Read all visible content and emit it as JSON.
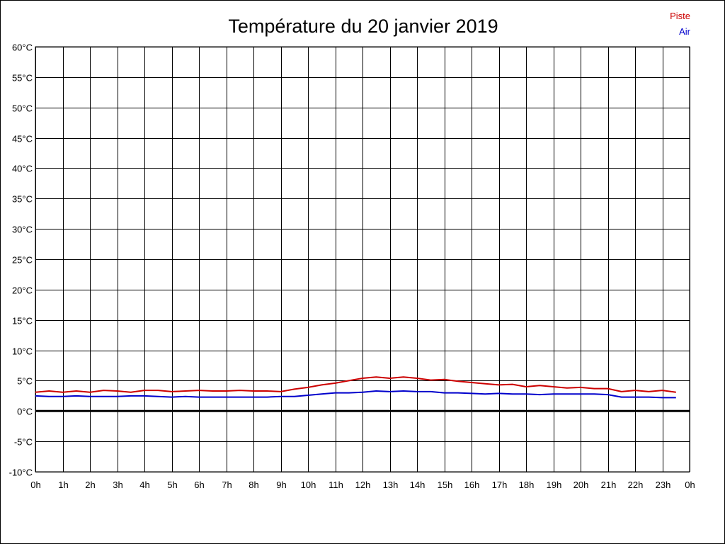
{
  "chart_data": {
    "type": "line",
    "title": "Température du 20 janvier 2019",
    "xlabel": "",
    "ylabel": "",
    "x_ticks": [
      "0h",
      "1h",
      "2h",
      "3h",
      "4h",
      "5h",
      "6h",
      "7h",
      "8h",
      "9h",
      "10h",
      "11h",
      "12h",
      "13h",
      "14h",
      "15h",
      "16h",
      "17h",
      "18h",
      "19h",
      "20h",
      "21h",
      "22h",
      "23h",
      "0h"
    ],
    "y_ticks": [
      {
        "value": 60,
        "label": "60°C"
      },
      {
        "value": 55,
        "label": "55°C"
      },
      {
        "value": 50,
        "label": "50°C"
      },
      {
        "value": 45,
        "label": "45°C"
      },
      {
        "value": 40,
        "label": "40°C"
      },
      {
        "value": 35,
        "label": "35°C"
      },
      {
        "value": 30,
        "label": "30°C"
      },
      {
        "value": 25,
        "label": "25°C"
      },
      {
        "value": 20,
        "label": "20°C"
      },
      {
        "value": 15,
        "label": "15°C"
      },
      {
        "value": 10,
        "label": "10°C"
      },
      {
        "value": 5,
        "label": "5°C"
      },
      {
        "value": 0,
        "label": "0°C"
      },
      {
        "value": -5,
        "label": "-5°C"
      },
      {
        "value": -10,
        "label": "-10°C"
      }
    ],
    "xlim": [
      0,
      24
    ],
    "ylim": [
      -10,
      60
    ],
    "grid": true,
    "legend_position": "top-right",
    "series": [
      {
        "name": "Piste",
        "color": "#cc0000",
        "x": [
          0,
          0.5,
          1,
          1.5,
          2,
          2.5,
          3,
          3.5,
          4,
          4.5,
          5,
          5.5,
          6,
          6.5,
          7,
          7.5,
          8,
          8.5,
          9,
          9.5,
          10,
          10.5,
          11,
          11.5,
          12,
          12.5,
          13,
          13.5,
          14,
          14.5,
          15,
          15.5,
          16,
          16.5,
          17,
          17.5,
          18,
          18.5,
          19,
          19.5,
          20,
          20.5,
          21,
          21.5,
          22,
          22.5,
          23,
          23.5
        ],
        "y": [
          3.1,
          3.3,
          3.1,
          3.3,
          3.1,
          3.4,
          3.3,
          3.1,
          3.4,
          3.4,
          3.2,
          3.3,
          3.4,
          3.3,
          3.3,
          3.4,
          3.3,
          3.3,
          3.2,
          3.6,
          3.9,
          4.3,
          4.6,
          5.0,
          5.4,
          5.6,
          5.4,
          5.6,
          5.4,
          5.1,
          5.2,
          4.9,
          4.7,
          4.5,
          4.3,
          4.4,
          4.0,
          4.2,
          4.0,
          3.8,
          3.9,
          3.7,
          3.7,
          3.2,
          3.4,
          3.2,
          3.4,
          3.1
        ]
      },
      {
        "name": "Air",
        "color": "#0000cc",
        "x": [
          0,
          0.5,
          1,
          1.5,
          2,
          2.5,
          3,
          3.5,
          4,
          4.5,
          5,
          5.5,
          6,
          6.5,
          7,
          7.5,
          8,
          8.5,
          9,
          9.5,
          10,
          10.5,
          11,
          11.5,
          12,
          12.5,
          13,
          13.5,
          14,
          14.5,
          15,
          15.5,
          16,
          16.5,
          17,
          17.5,
          18,
          18.5,
          19,
          19.5,
          20,
          20.5,
          21,
          21.5,
          22,
          22.5,
          23,
          23.5
        ],
        "y": [
          2.5,
          2.4,
          2.4,
          2.5,
          2.4,
          2.4,
          2.4,
          2.5,
          2.5,
          2.4,
          2.3,
          2.4,
          2.3,
          2.3,
          2.3,
          2.3,
          2.3,
          2.3,
          2.4,
          2.4,
          2.6,
          2.8,
          3.0,
          3.0,
          3.1,
          3.3,
          3.2,
          3.3,
          3.2,
          3.2,
          3.0,
          3.0,
          2.9,
          2.8,
          2.9,
          2.8,
          2.8,
          2.7,
          2.8,
          2.8,
          2.8,
          2.8,
          2.7,
          2.3,
          2.3,
          2.3,
          2.2,
          2.2
        ]
      }
    ]
  }
}
